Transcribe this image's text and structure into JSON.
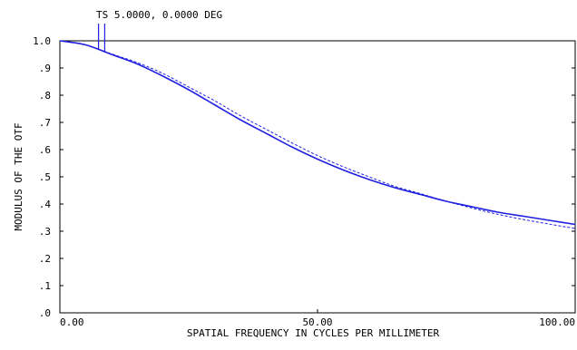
{
  "chart_data": {
    "type": "line",
    "legend_text": "TS 5.0000, 0.0000 DEG",
    "xlabel": "SPATIAL FREQUENCY IN CYCLES PER MILLIMETER",
    "ylabel": "MODULUS OF THE OTF",
    "xlim": [
      0,
      100
    ],
    "ylim": [
      0,
      1
    ],
    "x_ticks": [
      {
        "value": 0,
        "label": "0.00"
      },
      {
        "value": 50,
        "label": "50.00"
      },
      {
        "value": 100,
        "label": "100.00"
      }
    ],
    "y_ticks": [
      {
        "value": 0.0,
        "label": ".0"
      },
      {
        "value": 0.1,
        "label": ".1"
      },
      {
        "value": 0.2,
        "label": ".2"
      },
      {
        "value": 0.3,
        "label": ".3"
      },
      {
        "value": 0.4,
        "label": ".4"
      },
      {
        "value": 0.5,
        "label": ".5"
      },
      {
        "value": 0.6,
        "label": ".6"
      },
      {
        "value": 0.7,
        "label": ".7"
      },
      {
        "value": 0.8,
        "label": ".8"
      },
      {
        "value": 0.9,
        "label": ".9"
      },
      {
        "value": 1.0,
        "label": "1.0"
      }
    ],
    "grid": false,
    "series_color": "#2020e0",
    "x": [
      0,
      5,
      10,
      15,
      20,
      25,
      30,
      35,
      40,
      45,
      50,
      55,
      60,
      65,
      70,
      75,
      80,
      85,
      90,
      95,
      100
    ],
    "series": [
      {
        "style": "solid",
        "values": [
          1.0,
          0.985,
          0.95,
          0.915,
          0.87,
          0.82,
          0.765,
          0.71,
          0.66,
          0.61,
          0.565,
          0.525,
          0.49,
          0.46,
          0.435,
          0.41,
          0.39,
          0.37,
          0.355,
          0.34,
          0.325
        ]
      },
      {
        "style": "dashed",
        "values": [
          1.0,
          0.985,
          0.952,
          0.92,
          0.88,
          0.83,
          0.78,
          0.725,
          0.675,
          0.625,
          0.578,
          0.537,
          0.5,
          0.465,
          0.438,
          0.41,
          0.385,
          0.362,
          0.343,
          0.326,
          0.31
        ]
      }
    ],
    "legend_marker_x": [
      7.5,
      8.7
    ]
  }
}
